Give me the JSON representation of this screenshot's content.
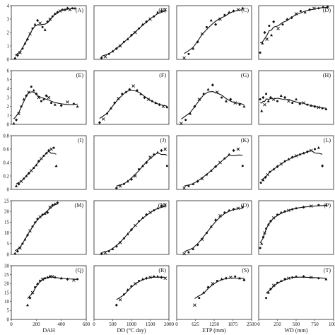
{
  "chart_data": {
    "type": "scatter",
    "layout": "5x4 grid of panels",
    "column_x_labels": [
      "DAH",
      "DD (°C day)",
      "ETP (mm)",
      "WD (mm)"
    ],
    "column_x_ticks": [
      [
        0,
        200,
        400,
        600
      ],
      [
        0,
        500,
        1000,
        1500,
        2000
      ],
      [
        0,
        625,
        1250,
        1875,
        2500
      ],
      [
        0,
        250,
        500,
        750,
        1000
      ]
    ],
    "column_x_tick_labels": [
      [
        "0",
        "200",
        "400",
        "600"
      ],
      [
        "0",
        "500",
        "1000",
        "1500",
        "2000"
      ],
      [
        "0",
        "625",
        "1250",
        "1875",
        "2500"
      ],
      [
        "0",
        "250",
        "500",
        "750",
        "1000"
      ]
    ],
    "row_y_ticks": [
      [
        0,
        1,
        2,
        3,
        4
      ],
      [
        0,
        1,
        2,
        3,
        4,
        5,
        6
      ],
      [
        0,
        0.2,
        0.4,
        0.6,
        0.8
      ],
      [
        0,
        5,
        10,
        15,
        20,
        25
      ],
      [
        0,
        5,
        10,
        15,
        20,
        25,
        30
      ]
    ],
    "row_y_tick_labels": [
      [
        "0",
        "1",
        "2",
        "3",
        "4"
      ],
      [
        "0",
        "1",
        "2",
        "3",
        "4",
        "5",
        "6"
      ],
      [
        "0",
        "0.2",
        "0.4",
        "0.6",
        "0.8"
      ],
      [
        "0",
        "5",
        "10",
        "15",
        "20",
        "25"
      ],
      [
        "0",
        "5",
        "10",
        "15",
        "20",
        "25",
        "30"
      ]
    ],
    "panels": [
      {
        "label": "(A)",
        "row": 0,
        "col": 0,
        "x": [
          30,
          50,
          70,
          90,
          110,
          130,
          150,
          170,
          190,
          210,
          230,
          250,
          270,
          290,
          310,
          330,
          350,
          370,
          390,
          410,
          430,
          450,
          470,
          490,
          510
        ],
        "y": [
          0.1,
          0.3,
          0.5,
          0.8,
          1.2,
          1.5,
          1.9,
          2.3,
          2.6,
          2.9,
          2.7,
          2.4,
          2.2,
          2.8,
          3.0,
          3.2,
          3.4,
          3.5,
          3.6,
          3.7,
          3.7,
          3.8,
          3.7,
          3.8,
          3.8
        ]
      },
      {
        "label": "(B)",
        "row": 0,
        "col": 1,
        "x": [
          200,
          300,
          400,
          500,
          600,
          700,
          800,
          900,
          1000,
          1100,
          1200,
          1300,
          1400,
          1500,
          1600,
          1700,
          1800,
          1900
        ],
        "y": [
          0.1,
          0.2,
          0.4,
          0.6,
          0.8,
          1.0,
          1.3,
          1.5,
          1.8,
          2.0,
          2.3,
          2.6,
          2.8,
          3.0,
          3.2,
          3.5,
          3.6,
          3.7
        ]
      },
      {
        "label": "(C)",
        "row": 0,
        "col": 2,
        "x": [
          250,
          400,
          550,
          700,
          850,
          1000,
          1150,
          1300,
          1450,
          1600,
          1750,
          1900,
          2050,
          2200
        ],
        "y": [
          0.1,
          0.4,
          0.8,
          1.3,
          1.9,
          2.4,
          2.9,
          2.6,
          3.0,
          3.3,
          3.5,
          3.6,
          3.7,
          3.8
        ]
      },
      {
        "label": "(D)",
        "row": 0,
        "col": 3,
        "x": [
          20,
          50,
          80,
          110,
          140,
          170,
          200,
          260,
          320,
          380,
          440,
          500,
          560,
          620,
          680,
          740,
          800,
          860,
          920
        ],
        "y": [
          0.5,
          1.2,
          2.0,
          1.5,
          2.5,
          1.8,
          2.8,
          2.3,
          2.6,
          3.0,
          3.1,
          3.4,
          3.6,
          3.5,
          3.7,
          3.8,
          3.8,
          3.9,
          3.9
        ]
      },
      {
        "label": "(E)",
        "row": 1,
        "col": 0,
        "x": [
          20,
          40,
          60,
          80,
          100,
          120,
          140,
          160,
          180,
          200,
          220,
          240,
          260,
          280,
          300,
          320,
          350,
          400,
          450,
          500,
          530
        ],
        "y": [
          0.1,
          0.5,
          1.2,
          2.0,
          2.8,
          3.2,
          3.6,
          4.2,
          3.8,
          3.4,
          3.0,
          2.6,
          2.8,
          3.2,
          3.0,
          2.4,
          2.2,
          2.1,
          2.5,
          2.3,
          2.0
        ]
      },
      {
        "label": "(F)",
        "row": 1,
        "col": 1,
        "x": [
          150,
          250,
          350,
          450,
          550,
          650,
          750,
          850,
          950,
          1050,
          1150,
          1250,
          1350,
          1450,
          1550,
          1650,
          1750,
          1850,
          1950
        ],
        "y": [
          0.2,
          0.6,
          1.2,
          1.8,
          2.4,
          2.9,
          3.4,
          3.6,
          3.9,
          4.3,
          3.8,
          3.4,
          3.0,
          2.8,
          2.6,
          2.4,
          2.2,
          2.0,
          1.9
        ]
      },
      {
        "label": "(G)",
        "row": 1,
        "col": 2,
        "x": [
          150,
          300,
          450,
          600,
          750,
          900,
          1050,
          1200,
          1350,
          1500,
          1650,
          1800,
          1950,
          2100,
          2250
        ],
        "y": [
          0.1,
          0.5,
          1.2,
          2.0,
          2.8,
          3.4,
          3.9,
          4.4,
          3.6,
          3.0,
          2.6,
          2.8,
          2.4,
          2.2,
          2.0
        ]
      },
      {
        "label": "(H)",
        "row": 1,
        "col": 3,
        "x": [
          20,
          40,
          60,
          80,
          100,
          130,
          160,
          200,
          250,
          300,
          350,
          400,
          450,
          500,
          550,
          600,
          650,
          700,
          750,
          800,
          850,
          900
        ],
        "y": [
          2.8,
          1.5,
          3.0,
          2.2,
          3.4,
          2.6,
          3.0,
          2.8,
          2.6,
          3.2,
          3.0,
          2.6,
          2.4,
          2.8,
          2.3,
          2.4,
          2.2,
          2.1,
          2.0,
          1.9,
          1.8,
          1.7
        ]
      },
      {
        "label": "(I)",
        "row": 2,
        "col": 0,
        "x": [
          40,
          60,
          80,
          100,
          120,
          140,
          160,
          180,
          200,
          220,
          240,
          260,
          280,
          300,
          320,
          340,
          360
        ],
        "y": [
          0.05,
          0.08,
          0.12,
          0.16,
          0.2,
          0.24,
          0.28,
          0.32,
          0.36,
          0.42,
          0.46,
          0.5,
          0.54,
          0.58,
          0.6,
          0.62,
          0.35
        ]
      },
      {
        "label": "(J)",
        "row": 2,
        "col": 1,
        "x": [
          600,
          700,
          800,
          900,
          1000,
          1100,
          1200,
          1300,
          1400,
          1500,
          1600,
          1700,
          1800,
          1900,
          1950
        ],
        "y": [
          0.02,
          0.05,
          0.08,
          0.12,
          0.15,
          0.2,
          0.3,
          0.35,
          0.4,
          0.48,
          0.52,
          0.55,
          0.58,
          0.6,
          0.35
        ]
      },
      {
        "label": "(K)",
        "row": 2,
        "col": 2,
        "x": [
          250,
          400,
          550,
          700,
          850,
          1000,
          1150,
          1300,
          1450,
          1600,
          1750,
          1900,
          2050,
          2200
        ],
        "y": [
          0.02,
          0.05,
          0.08,
          0.12,
          0.16,
          0.22,
          0.28,
          0.34,
          0.4,
          0.46,
          0.52,
          0.58,
          0.6,
          0.35
        ]
      },
      {
        "label": "(L)",
        "row": 2,
        "col": 3,
        "x": [
          30,
          60,
          90,
          120,
          150,
          200,
          250,
          300,
          350,
          400,
          450,
          500,
          550,
          600,
          650,
          700,
          750,
          800,
          850
        ],
        "y": [
          0.1,
          0.14,
          0.18,
          0.22,
          0.26,
          0.3,
          0.34,
          0.38,
          0.42,
          0.45,
          0.48,
          0.5,
          0.52,
          0.54,
          0.56,
          0.58,
          0.6,
          0.62,
          0.35
        ]
      },
      {
        "label": "(M)",
        "row": 3,
        "col": 0,
        "x": [
          30,
          50,
          70,
          90,
          110,
          130,
          150,
          170,
          190,
          210,
          230,
          250,
          270,
          290,
          310,
          330,
          350,
          370
        ],
        "y": [
          0.5,
          1.5,
          3.0,
          5.0,
          7.0,
          9.0,
          11.0,
          13.0,
          15.0,
          16.5,
          17.5,
          18.5,
          19.0,
          19.5,
          22.0,
          23.0,
          23.5,
          24.0
        ]
      },
      {
        "label": "(N)",
        "row": 3,
        "col": 1,
        "x": [
          200,
          300,
          400,
          500,
          600,
          700,
          800,
          900,
          1000,
          1100,
          1200,
          1300,
          1400,
          1500,
          1600,
          1700,
          1800,
          1900
        ],
        "y": [
          0.3,
          0.8,
          1.5,
          2.5,
          3.8,
          5.5,
          7.5,
          9.5,
          11.5,
          13.5,
          15.5,
          17.0,
          18.5,
          19.5,
          20.5,
          21.5,
          22.5,
          23.0
        ]
      },
      {
        "label": "(O)",
        "row": 3,
        "col": 2,
        "x": [
          250,
          400,
          550,
          700,
          850,
          1000,
          1150,
          1300,
          1450,
          1600,
          1750,
          1900,
          2050,
          2200
        ],
        "y": [
          0.3,
          1.0,
          2.5,
          4.5,
          7.0,
          10.0,
          13.0,
          16.0,
          18.0,
          19.5,
          20.5,
          21.0,
          21.5,
          22.0
        ]
      },
      {
        "label": "(P)",
        "row": 3,
        "col": 3,
        "x": [
          20,
          40,
          60,
          80,
          100,
          130,
          160,
          200,
          250,
          300,
          350,
          400,
          450,
          500,
          600,
          700,
          800,
          900
        ],
        "y": [
          3.0,
          5.0,
          8.0,
          10.0,
          12.0,
          14.0,
          15.5,
          17.0,
          18.5,
          19.5,
          20.0,
          20.5,
          21.0,
          21.5,
          22.0,
          22.5,
          23.0,
          23.0
        ]
      },
      {
        "label": "(Q)",
        "row": 4,
        "col": 0,
        "x": [
          130,
          150,
          170,
          190,
          210,
          230,
          250,
          270,
          290,
          310,
          330,
          350,
          400,
          450,
          500,
          530
        ],
        "y": [
          8.0,
          12.0,
          15.0,
          18.0,
          20.0,
          21.5,
          22.5,
          23.0,
          23.5,
          24.0,
          24.0,
          23.5,
          23.0,
          22.5,
          22.0,
          22.5
        ]
      },
      {
        "label": "(R)",
        "row": 4,
        "col": 1,
        "x": [
          600,
          700,
          800,
          900,
          1000,
          1100,
          1200,
          1300,
          1400,
          1500,
          1600,
          1700,
          1800,
          1900
        ],
        "y": [
          8.0,
          11.0,
          14.0,
          16.5,
          18.5,
          20.0,
          21.5,
          22.5,
          23.0,
          23.5,
          24.0,
          24.0,
          23.5,
          23.0
        ]
      },
      {
        "label": "(S)",
        "row": 4,
        "col": 2,
        "x": [
          600,
          750,
          900,
          1050,
          1200,
          1350,
          1500,
          1650,
          1800,
          1950,
          2100,
          2250
        ],
        "y": [
          8.0,
          12.0,
          15.0,
          18.0,
          20.0,
          21.5,
          22.5,
          23.0,
          23.5,
          24.0,
          23.0,
          22.0
        ]
      },
      {
        "label": "(T)",
        "row": 4,
        "col": 3,
        "x": [
          100,
          130,
          160,
          200,
          250,
          300,
          350,
          400,
          450,
          500,
          600,
          700,
          800,
          900
        ],
        "y": [
          12.0,
          15.0,
          17.0,
          19.0,
          20.5,
          21.5,
          22.5,
          23.0,
          23.5,
          24.0,
          24.0,
          23.5,
          23.0,
          22.5
        ]
      }
    ]
  }
}
